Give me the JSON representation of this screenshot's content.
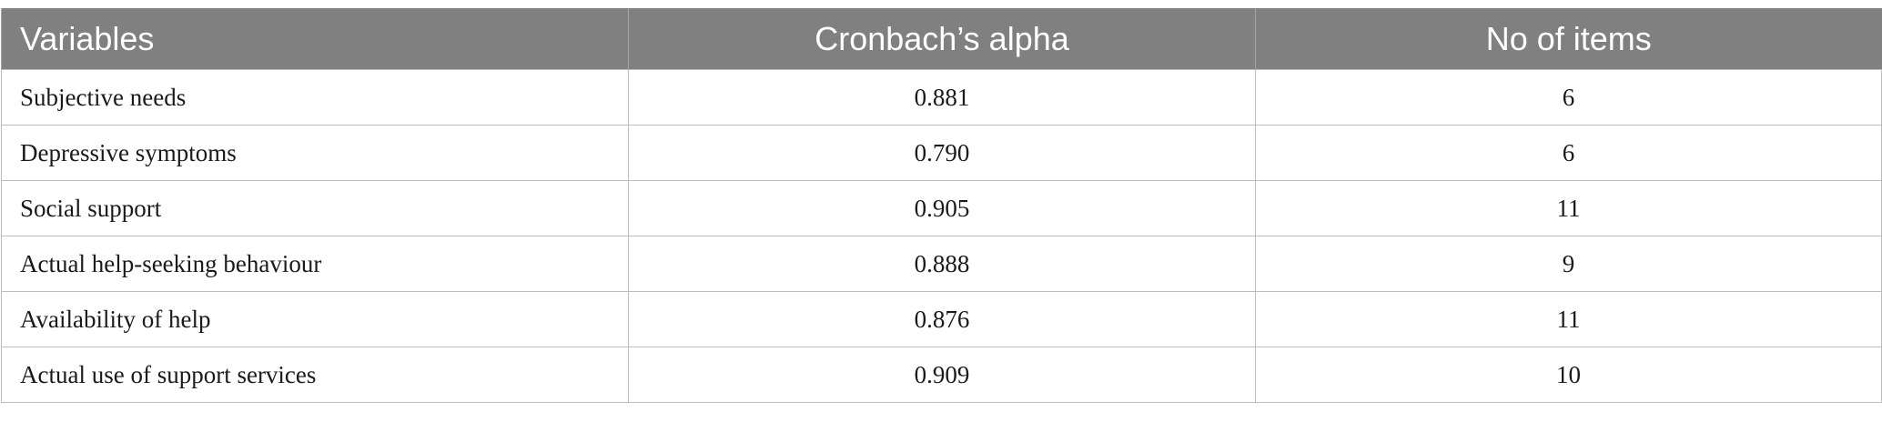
{
  "table": {
    "header": [
      "Variables",
      "Cronbach’s alpha",
      "No of items"
    ],
    "rows": [
      [
        "Subjective needs",
        "0.881",
        "6"
      ],
      [
        "Depressive symptoms",
        "0.790",
        "6"
      ],
      [
        "Social support",
        "0.905",
        "11"
      ],
      [
        "Actual help-seeking behaviour",
        "0.888",
        "9"
      ],
      [
        "Availability of help",
        "0.876",
        "11"
      ],
      [
        "Actual use of support services",
        "0.909",
        "10"
      ]
    ]
  }
}
